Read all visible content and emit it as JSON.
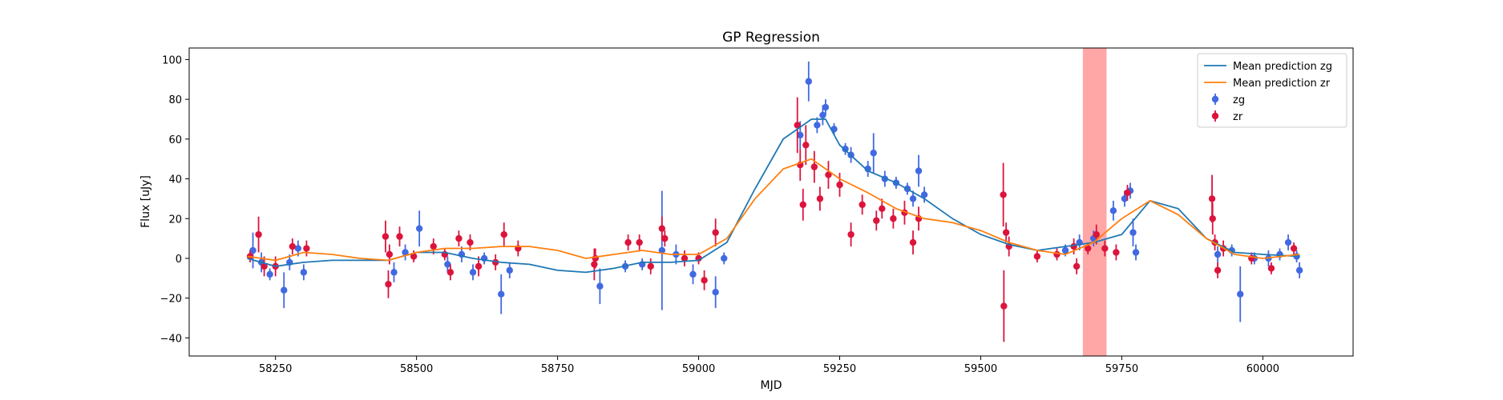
{
  "chart_data": {
    "type": "scatter",
    "title": "GP Regression",
    "x_label": "MJD",
    "y_label": "Flux [uJy]",
    "xlim": [
      58097,
      60160
    ],
    "ylim": [
      -49.1,
      105.8
    ],
    "xticks": [
      58250,
      58500,
      58750,
      59000,
      59250,
      59500,
      59750,
      60000
    ],
    "yticks": [
      {
        "value": -40,
        "label": "−40"
      },
      {
        "value": -20,
        "label": "−20"
      },
      0,
      20,
      40,
      60,
      80,
      100
    ],
    "legend": "upper right",
    "span": {
      "x": [
        59681,
        59723
      ],
      "color": "#ff0000",
      "alpha": 0.35
    },
    "series": [
      {
        "name": "Mean prediction zg",
        "kind": "line",
        "color": "#1f77b4",
        "x": [
          58200,
          58250,
          58300,
          58350,
          58400,
          58450,
          58500,
          58550,
          58600,
          58650,
          58700,
          58750,
          58800,
          58850,
          58900,
          58950,
          59000,
          59050,
          59100,
          59150,
          59200,
          59225,
          59250,
          59300,
          59350,
          59400,
          59450,
          59500,
          59550,
          59600,
          59650,
          59700,
          59750,
          59800,
          59850,
          59900,
          59950,
          60000,
          60065
        ],
        "values": [
          0,
          -4,
          -2,
          -1,
          -1,
          -1,
          3,
          3,
          0,
          -2,
          -3,
          -6,
          -7,
          -5,
          -2,
          -2,
          -1,
          8,
          35,
          60,
          70,
          70,
          57,
          44,
          38,
          30,
          20,
          12,
          7,
          4,
          6,
          8,
          12,
          29,
          25,
          10,
          3,
          2,
          1
        ]
      },
      {
        "name": "Mean prediction zr",
        "kind": "line",
        "color": "#ff7f0e",
        "x": [
          58200,
          58250,
          58300,
          58350,
          58400,
          58450,
          58500,
          58550,
          58600,
          58650,
          58700,
          58750,
          58800,
          58850,
          58900,
          58950,
          59000,
          59050,
          59100,
          59150,
          59200,
          59250,
          59300,
          59350,
          59400,
          59450,
          59500,
          59550,
          59600,
          59650,
          59700,
          59750,
          59800,
          59850,
          59900,
          59950,
          60000,
          60065
        ],
        "values": [
          1,
          -1,
          3,
          2,
          0,
          -1,
          3,
          5,
          5,
          6,
          6,
          4,
          0,
          2,
          4,
          2,
          2,
          10,
          30,
          45,
          50,
          40,
          33,
          25,
          20,
          18,
          14,
          8,
          4,
          2,
          8,
          20,
          29,
          22,
          10,
          2,
          0,
          2
        ]
      },
      {
        "name": "zg",
        "kind": "errorbar",
        "color": "#4169e1",
        "x": [
          58210,
          58225,
          58240,
          58265,
          58275,
          58290,
          58300,
          58460,
          58480,
          58505,
          58555,
          58580,
          58600,
          58620,
          58650,
          58665,
          58825,
          58870,
          58900,
          58935,
          58960,
          58990,
          59030,
          59045,
          59180,
          59195,
          59210,
          59220,
          59225,
          59240,
          59260,
          59270,
          59300,
          59310,
          59330,
          59350,
          59370,
          59380,
          59390,
          59400,
          59650,
          59675,
          59700,
          59735,
          59755,
          59765,
          59770,
          59775,
          59920,
          59945,
          59960,
          59985,
          60010,
          60030,
          60045,
          60060,
          60065
        ],
        "values": [
          4,
          -2,
          -8,
          -16,
          -2,
          5,
          -7,
          -7,
          3,
          15,
          -3,
          2,
          -7,
          0,
          -18,
          -6,
          -14,
          -4,
          -3,
          4,
          2,
          -8,
          -17,
          0,
          62,
          89,
          67,
          72,
          76,
          65,
          55,
          52,
          45,
          53,
          40,
          38,
          35,
          30,
          44,
          32,
          4,
          8,
          10,
          24,
          30,
          34,
          13,
          3,
          2,
          4,
          -18,
          0,
          0,
          2,
          8,
          1,
          -6
        ],
        "errors": [
          9,
          5,
          3,
          9,
          4,
          4,
          4,
          5,
          4,
          9,
          4,
          4,
          4,
          3,
          10,
          4,
          9,
          3,
          3,
          30,
          5,
          5,
          8,
          3,
          7,
          10,
          4,
          5,
          4,
          3,
          3,
          4,
          4,
          10,
          4,
          3,
          3,
          4,
          8,
          4,
          3,
          4,
          4,
          5,
          4,
          4,
          7,
          4,
          4,
          3,
          14,
          3,
          4,
          3,
          4,
          3,
          4
        ]
      },
      {
        "name": "zr",
        "kind": "errorbar",
        "color": "#dc143c",
        "x": [
          58205,
          58220,
          58230,
          58250,
          58280,
          58305,
          58445,
          58450,
          58452,
          58470,
          58495,
          58530,
          58550,
          58560,
          58575,
          58595,
          58610,
          58640,
          58655,
          58680,
          58815,
          58817,
          58875,
          58895,
          58915,
          58935,
          58940,
          58975,
          59000,
          59010,
          59030,
          59175,
          59180,
          59185,
          59190,
          59205,
          59215,
          59230,
          59250,
          59270,
          59290,
          59315,
          59325,
          59345,
          59365,
          59380,
          59390,
          59540,
          59541,
          59545,
          59550,
          59600,
          59635,
          59665,
          59670,
          59690,
          59705,
          59720,
          59740,
          59760,
          59910,
          59911,
          59915,
          59920,
          59930,
          59980,
          60015,
          60055
        ],
        "values": [
          1,
          12,
          -4,
          -4,
          6,
          5,
          11,
          -13,
          2,
          11,
          1,
          6,
          2,
          -7,
          10,
          8,
          -4,
          -2,
          12,
          5,
          -3,
          0,
          8,
          8,
          -4,
          15,
          10,
          0,
          0,
          -11,
          13,
          67,
          47,
          27,
          57,
          46,
          30,
          42,
          37,
          12,
          27,
          19,
          25,
          20,
          23,
          8,
          20,
          32,
          -24,
          13,
          6,
          1,
          2,
          6,
          -4,
          5,
          12,
          5,
          3,
          33,
          30,
          20,
          8,
          -6,
          5,
          0,
          -5,
          5
        ],
        "errors": [
          3,
          9,
          5,
          5,
          4,
          4,
          8,
          7,
          5,
          5,
          3,
          4,
          3,
          4,
          4,
          4,
          5,
          4,
          6,
          4,
          8,
          5,
          4,
          4,
          4,
          6,
          4,
          4,
          3,
          5,
          7,
          14,
          8,
          8,
          10,
          8,
          6,
          7,
          6,
          6,
          5,
          5,
          5,
          5,
          6,
          6,
          6,
          16,
          18,
          5,
          5,
          3,
          3,
          4,
          4,
          3,
          5,
          4,
          4,
          4,
          12,
          8,
          4,
          4,
          4,
          3,
          3,
          3
        ]
      }
    ]
  }
}
